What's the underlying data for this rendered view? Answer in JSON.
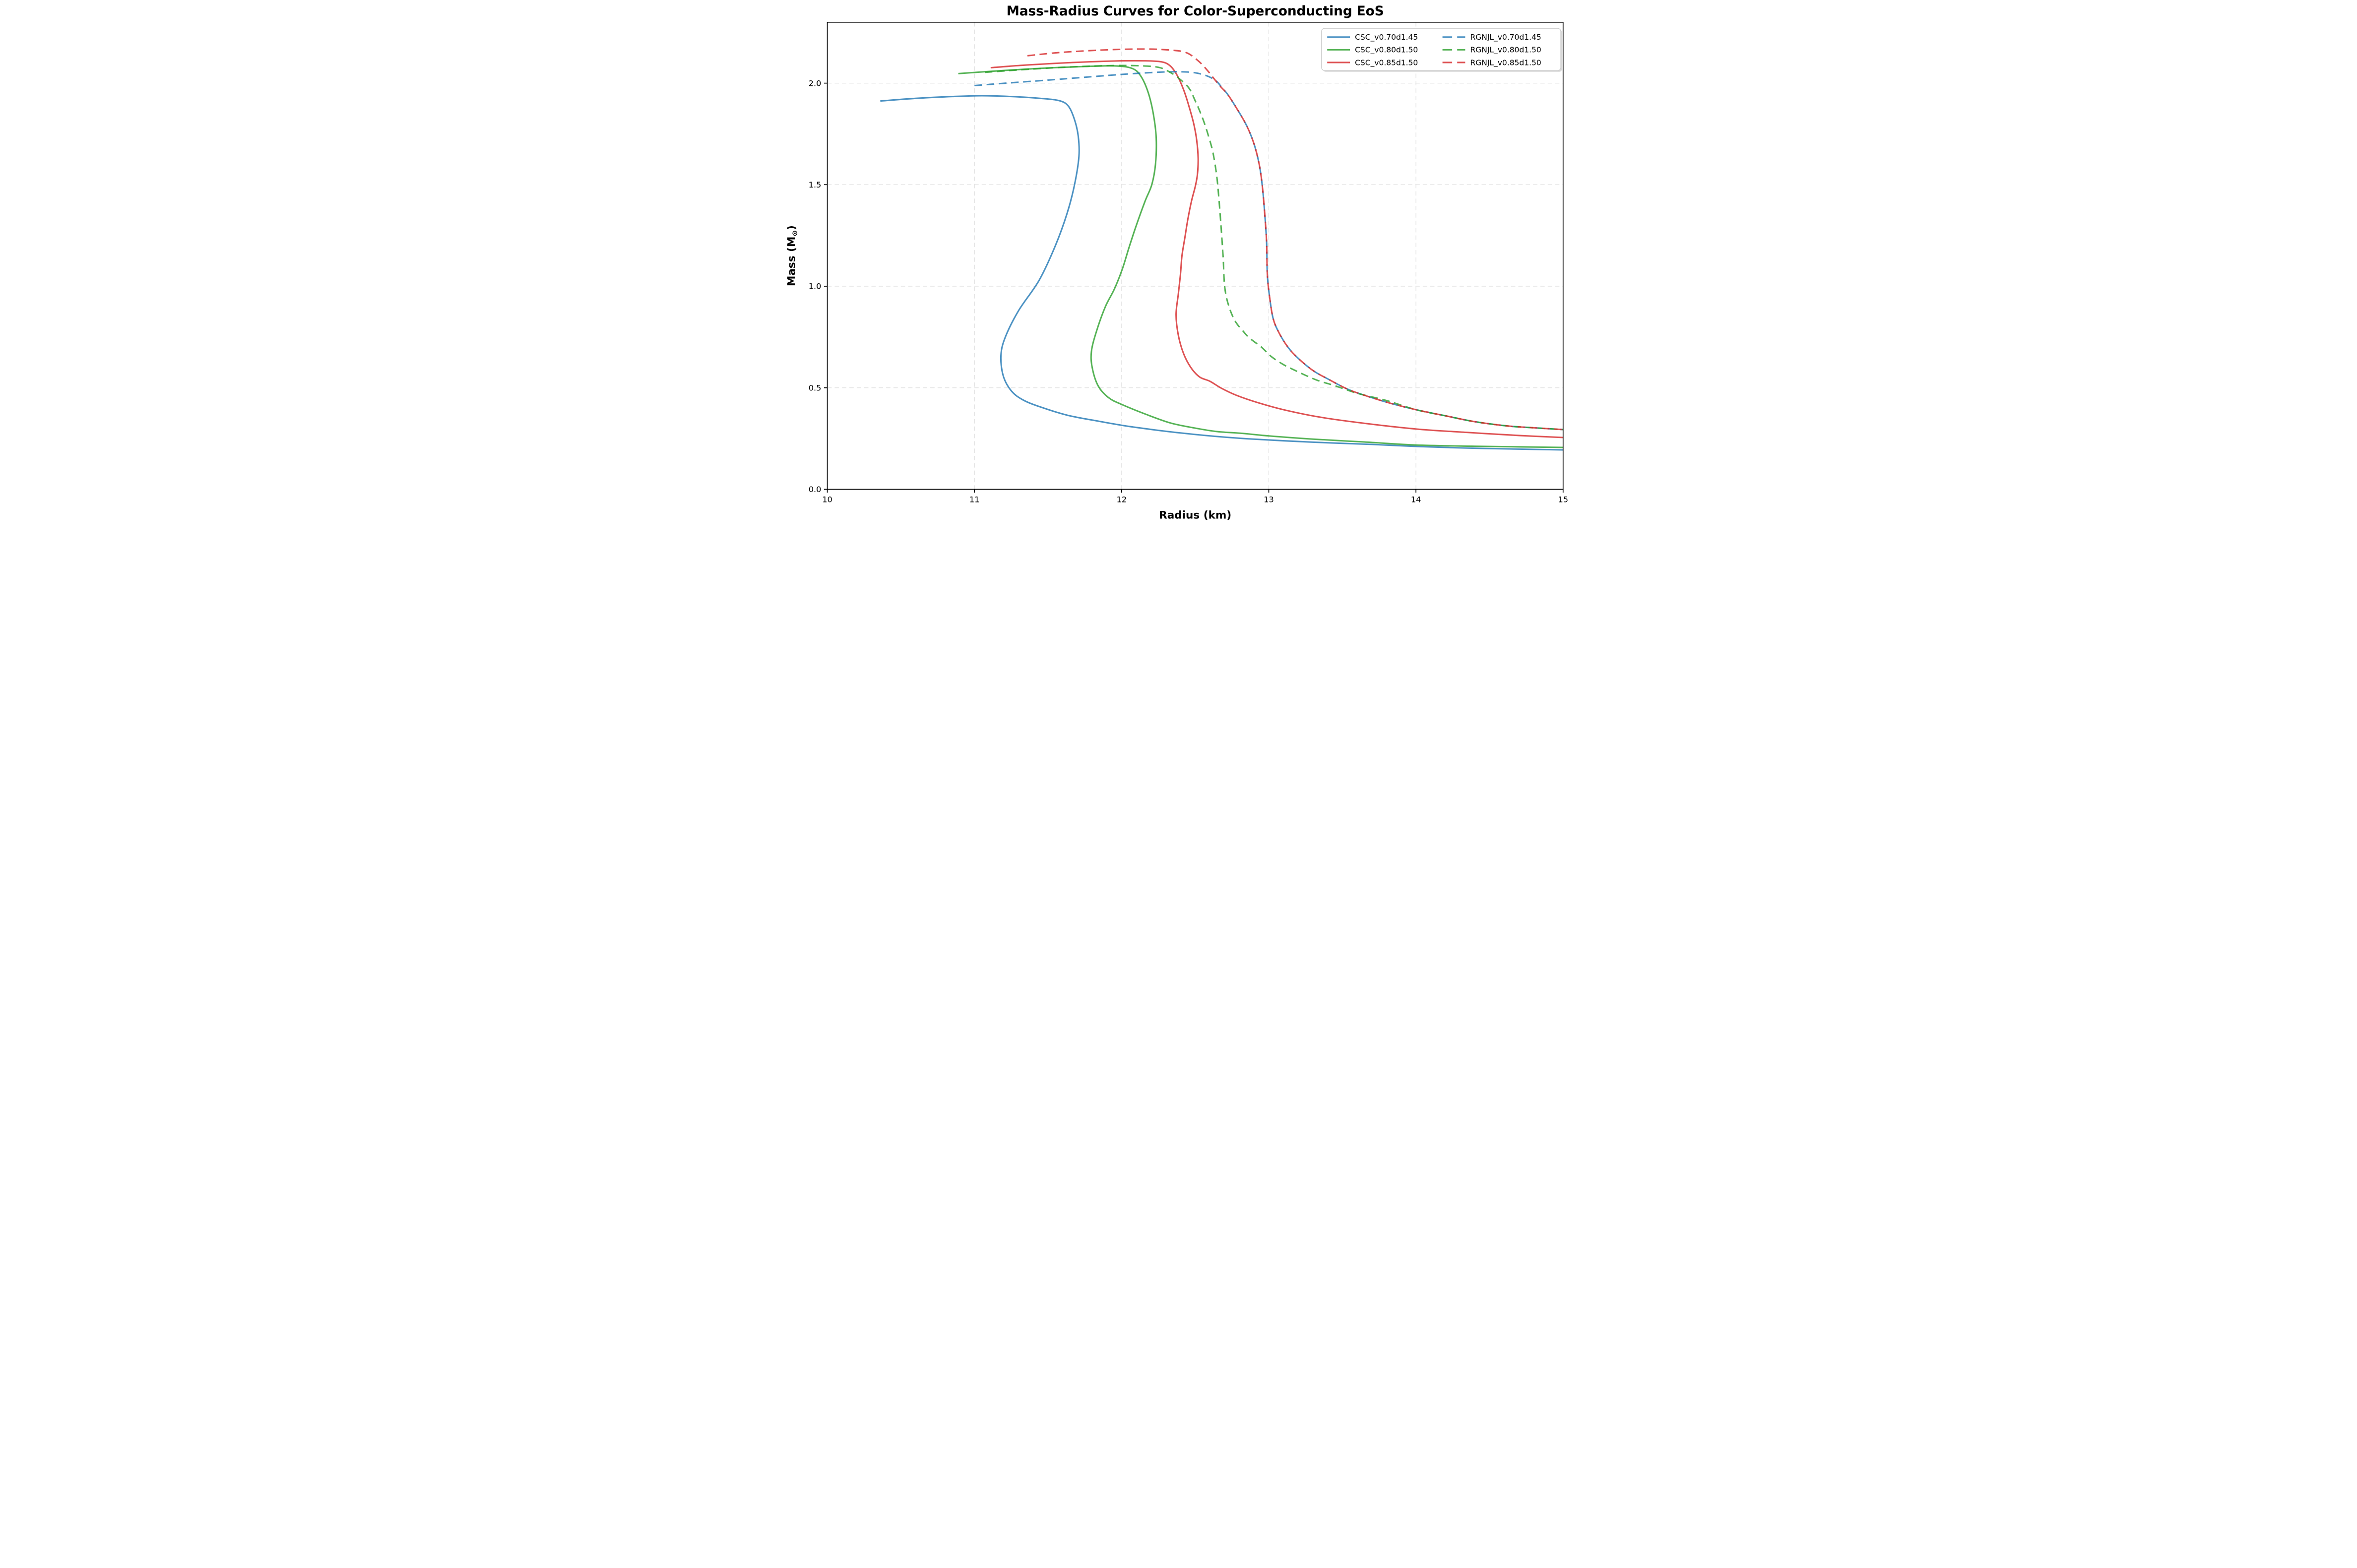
{
  "title": "Mass-Radius Curves for Color-Superconducting EoS",
  "axes": {
    "xlabel": "Radius (km)",
    "ylabel": "Mass (M⊙)",
    "ylabel_parts": {
      "pre": "Mass (M",
      "sub": "⊙",
      "post": ")"
    },
    "xlim": [
      10,
      15
    ],
    "ylim": [
      0.0,
      2.3
    ],
    "xticks": [
      10,
      11,
      12,
      13,
      14,
      15
    ],
    "xtick_labels": [
      "10",
      "11",
      "12",
      "13",
      "14",
      "15"
    ],
    "yticks": [
      0.0,
      0.5,
      1.0,
      1.5,
      2.0
    ],
    "ytick_labels": [
      "0.0",
      "0.5",
      "1.0",
      "1.5",
      "2.0"
    ],
    "grid": true
  },
  "legend": {
    "position": "upper right",
    "columns": 2,
    "entries": [
      {
        "label": "CSC_v0.70d1.45",
        "series": "CSC_v0.70d1.45"
      },
      {
        "label": "CSC_v0.80d1.50",
        "series": "CSC_v0.80d1.50"
      },
      {
        "label": "CSC_v0.85d1.50",
        "series": "CSC_v0.85d1.50"
      },
      {
        "label": "RGNJL_v0.70d1.45",
        "series": "RGNJL_v0.70d1.45"
      },
      {
        "label": "RGNJL_v0.80d1.50",
        "series": "RGNJL_v0.80d1.50"
      },
      {
        "label": "RGNJL_v0.85d1.50",
        "series": "RGNJL_v0.85d1.50"
      }
    ]
  },
  "colors": {
    "blue": "#1f77b4",
    "green": "#2ca02c",
    "red": "#d62728",
    "grid": "#dedede",
    "spine": "#000000",
    "legend_border": "#cccccc",
    "background": "#ffffff"
  },
  "line_alpha": 0.8,
  "chart_data": {
    "type": "line",
    "title": "Mass-Radius Curves for Color-Superconducting EoS",
    "xlabel": "Radius (km)",
    "ylabel": "Mass (M⊙)",
    "xlim": [
      10,
      15
    ],
    "ylim": [
      0.0,
      2.3
    ],
    "grid": true,
    "legend_position": "upper right",
    "series": [
      {
        "name": "CSC_v0.70d1.45",
        "color": "blue",
        "linestyle": "solid",
        "max_mass": 1.94,
        "points": [
          [
            10.36,
            1.912
          ],
          [
            10.6,
            1.925
          ],
          [
            10.85,
            1.934
          ],
          [
            11.05,
            1.938
          ],
          [
            11.25,
            1.934
          ],
          [
            11.45,
            1.925
          ],
          [
            11.58,
            1.913
          ],
          [
            11.64,
            1.885
          ],
          [
            11.68,
            1.82
          ],
          [
            11.705,
            1.74
          ],
          [
            11.71,
            1.64
          ],
          [
            11.68,
            1.5
          ],
          [
            11.63,
            1.36
          ],
          [
            11.55,
            1.2
          ],
          [
            11.44,
            1.03
          ],
          [
            11.3,
            0.88
          ],
          [
            11.21,
            0.75
          ],
          [
            11.18,
            0.66
          ],
          [
            11.195,
            0.56
          ],
          [
            11.25,
            0.485
          ],
          [
            11.33,
            0.44
          ],
          [
            11.45,
            0.405
          ],
          [
            11.63,
            0.365
          ],
          [
            11.83,
            0.337
          ],
          [
            12.02,
            0.313
          ],
          [
            12.22,
            0.293
          ],
          [
            12.42,
            0.276
          ],
          [
            12.63,
            0.261
          ],
          [
            12.85,
            0.249
          ],
          [
            13.1,
            0.239
          ],
          [
            13.4,
            0.229
          ],
          [
            13.7,
            0.221
          ],
          [
            14.0,
            0.211
          ],
          [
            14.35,
            0.203
          ],
          [
            14.7,
            0.198
          ],
          [
            15.0,
            0.194
          ]
        ]
      },
      {
        "name": "CSC_v0.80d1.50",
        "color": "green",
        "linestyle": "solid",
        "max_mass": 2.09,
        "points": [
          [
            10.89,
            2.047
          ],
          [
            11.15,
            2.06
          ],
          [
            11.45,
            2.073
          ],
          [
            11.75,
            2.082
          ],
          [
            11.95,
            2.085
          ],
          [
            12.07,
            2.073
          ],
          [
            12.13,
            2.035
          ],
          [
            12.18,
            1.955
          ],
          [
            12.215,
            1.85
          ],
          [
            12.235,
            1.73
          ],
          [
            12.23,
            1.6
          ],
          [
            12.205,
            1.5
          ],
          [
            12.16,
            1.42
          ],
          [
            12.1,
            1.3
          ],
          [
            12.05,
            1.19
          ],
          [
            12.005,
            1.085
          ],
          [
            11.95,
            0.985
          ],
          [
            11.89,
            0.9
          ],
          [
            11.83,
            0.78
          ],
          [
            11.795,
            0.68
          ],
          [
            11.8,
            0.6
          ],
          [
            11.84,
            0.51
          ],
          [
            11.91,
            0.452
          ],
          [
            12.0,
            0.418
          ],
          [
            12.17,
            0.368
          ],
          [
            12.33,
            0.327
          ],
          [
            12.48,
            0.304
          ],
          [
            12.64,
            0.285
          ],
          [
            12.81,
            0.276
          ],
          [
            13.0,
            0.263
          ],
          [
            13.3,
            0.247
          ],
          [
            13.65,
            0.233
          ],
          [
            14.0,
            0.218
          ],
          [
            14.4,
            0.212
          ],
          [
            14.7,
            0.209
          ],
          [
            15.0,
            0.206
          ]
        ]
      },
      {
        "name": "CSC_v0.85d1.50",
        "color": "red",
        "linestyle": "solid",
        "max_mass": 2.11,
        "points": [
          [
            11.11,
            2.076
          ],
          [
            11.35,
            2.089
          ],
          [
            11.65,
            2.101
          ],
          [
            11.95,
            2.109
          ],
          [
            12.15,
            2.11
          ],
          [
            12.27,
            2.105
          ],
          [
            12.33,
            2.085
          ],
          [
            12.38,
            2.035
          ],
          [
            12.425,
            1.96
          ],
          [
            12.46,
            1.88
          ],
          [
            12.49,
            1.8
          ],
          [
            12.51,
            1.72
          ],
          [
            12.52,
            1.63
          ],
          [
            12.515,
            1.55
          ],
          [
            12.5,
            1.49
          ],
          [
            12.475,
            1.42
          ],
          [
            12.45,
            1.33
          ],
          [
            12.43,
            1.24
          ],
          [
            12.41,
            1.15
          ],
          [
            12.4,
            1.06
          ],
          [
            12.385,
            0.96
          ],
          [
            12.37,
            0.86
          ],
          [
            12.385,
            0.76
          ],
          [
            12.42,
            0.67
          ],
          [
            12.47,
            0.6
          ],
          [
            12.53,
            0.553
          ],
          [
            12.6,
            0.532
          ],
          [
            12.68,
            0.497
          ],
          [
            12.78,
            0.463
          ],
          [
            12.92,
            0.428
          ],
          [
            13.1,
            0.392
          ],
          [
            13.35,
            0.355
          ],
          [
            13.65,
            0.325
          ],
          [
            14.0,
            0.297
          ],
          [
            14.35,
            0.28
          ],
          [
            14.7,
            0.265
          ],
          [
            15.0,
            0.255
          ]
        ]
      },
      {
        "name": "RGNJL_v0.70d1.45",
        "color": "blue",
        "linestyle": "dashed",
        "max_mass": 2.06,
        "points": [
          [
            11.0,
            1.988
          ],
          [
            11.25,
            2.002
          ],
          [
            11.5,
            2.015
          ],
          [
            11.75,
            2.029
          ],
          [
            12.0,
            2.043
          ],
          [
            12.2,
            2.052
          ],
          [
            12.35,
            2.056
          ],
          [
            12.48,
            2.053
          ],
          [
            12.575,
            2.037
          ],
          [
            12.64,
            2.012
          ],
          [
            12.68,
            1.98
          ],
          [
            12.72,
            1.945
          ],
          [
            12.78,
            1.878
          ],
          [
            12.85,
            1.79
          ],
          [
            12.9,
            1.7
          ],
          [
            12.935,
            1.6
          ],
          [
            12.955,
            1.5
          ],
          [
            12.97,
            1.38
          ],
          [
            12.985,
            1.22
          ],
          [
            12.99,
            1.06
          ],
          [
            13.005,
            0.95
          ],
          [
            13.03,
            0.84
          ],
          [
            13.07,
            0.77
          ],
          [
            13.13,
            0.7
          ],
          [
            13.2,
            0.645
          ],
          [
            13.3,
            0.585
          ],
          [
            13.4,
            0.544
          ],
          [
            13.53,
            0.495
          ],
          [
            13.65,
            0.463
          ],
          [
            13.82,
            0.425
          ],
          [
            14.0,
            0.392
          ],
          [
            14.2,
            0.362
          ],
          [
            14.4,
            0.333
          ],
          [
            14.62,
            0.312
          ],
          [
            14.8,
            0.303
          ],
          [
            15.0,
            0.294
          ]
        ]
      },
      {
        "name": "RGNJL_v0.80d1.50",
        "color": "green",
        "linestyle": "dashed",
        "max_mass": 2.09,
        "points": [
          [
            11.07,
            2.053
          ],
          [
            11.3,
            2.065
          ],
          [
            11.6,
            2.078
          ],
          [
            11.9,
            2.086
          ],
          [
            12.1,
            2.086
          ],
          [
            12.25,
            2.078
          ],
          [
            12.33,
            2.053
          ],
          [
            12.4,
            2.017
          ],
          [
            12.46,
            1.973
          ],
          [
            12.5,
            1.913
          ],
          [
            12.53,
            1.864
          ],
          [
            12.56,
            1.808
          ],
          [
            12.59,
            1.74
          ],
          [
            12.62,
            1.66
          ],
          [
            12.645,
            1.55
          ],
          [
            12.66,
            1.44
          ],
          [
            12.675,
            1.3
          ],
          [
            12.69,
            1.14
          ],
          [
            12.7,
            1.0
          ],
          [
            12.725,
            0.91
          ],
          [
            12.77,
            0.83
          ],
          [
            12.83,
            0.775
          ],
          [
            12.87,
            0.744
          ],
          [
            12.95,
            0.7
          ],
          [
            13.02,
            0.652
          ],
          [
            13.1,
            0.614
          ],
          [
            13.18,
            0.585
          ],
          [
            13.26,
            0.558
          ],
          [
            13.34,
            0.534
          ],
          [
            13.45,
            0.51
          ],
          [
            13.6,
            0.473
          ],
          [
            13.8,
            0.437
          ],
          [
            14.0,
            0.392
          ],
          [
            14.2,
            0.362
          ],
          [
            14.4,
            0.333
          ],
          [
            14.62,
            0.312
          ],
          [
            14.8,
            0.303
          ],
          [
            15.0,
            0.294
          ]
        ]
      },
      {
        "name": "RGNJL_v0.85d1.50",
        "color": "red",
        "linestyle": "dashed",
        "max_mass": 2.17,
        "points": [
          [
            11.36,
            2.135
          ],
          [
            11.6,
            2.152
          ],
          [
            11.9,
            2.164
          ],
          [
            12.15,
            2.168
          ],
          [
            12.33,
            2.163
          ],
          [
            12.44,
            2.15
          ],
          [
            12.52,
            2.11
          ],
          [
            12.58,
            2.065
          ],
          [
            12.63,
            2.02
          ],
          [
            12.67,
            1.985
          ],
          [
            12.72,
            1.945
          ],
          [
            12.78,
            1.878
          ],
          [
            12.85,
            1.79
          ],
          [
            12.9,
            1.7
          ],
          [
            12.935,
            1.6
          ],
          [
            12.955,
            1.5
          ],
          [
            12.97,
            1.38
          ],
          [
            12.985,
            1.22
          ],
          [
            12.99,
            1.06
          ],
          [
            13.005,
            0.95
          ],
          [
            13.03,
            0.84
          ],
          [
            13.07,
            0.77
          ],
          [
            13.13,
            0.7
          ],
          [
            13.2,
            0.645
          ],
          [
            13.3,
            0.585
          ],
          [
            13.4,
            0.544
          ],
          [
            13.53,
            0.495
          ],
          [
            13.65,
            0.463
          ],
          [
            13.82,
            0.425
          ],
          [
            14.0,
            0.392
          ],
          [
            14.2,
            0.362
          ],
          [
            14.4,
            0.333
          ],
          [
            14.62,
            0.312
          ],
          [
            14.8,
            0.303
          ],
          [
            15.0,
            0.294
          ]
        ]
      }
    ]
  }
}
